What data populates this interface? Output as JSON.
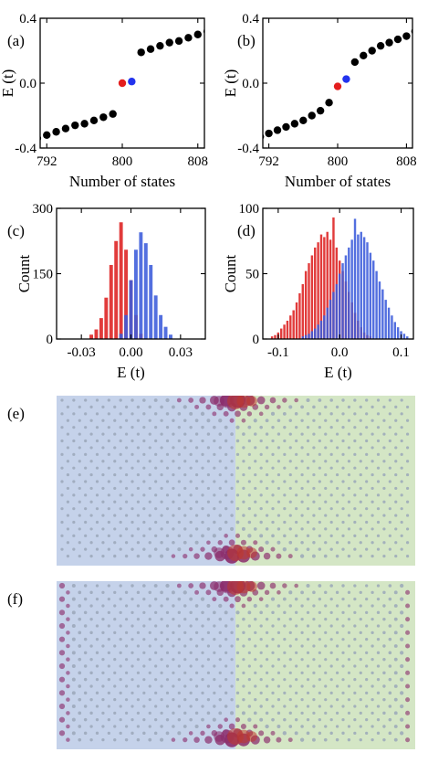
{
  "colors": {
    "black": "#000000",
    "red": "#e41e1e",
    "blue": "#2233ee",
    "hist_red": "#dd2020",
    "hist_blue": "#3b5bdb",
    "region_left": "#c5d2ea",
    "region_right": "#d4e6c5",
    "lattice_gray": "#9aa7b8",
    "state_purple": "#8a2a6a"
  },
  "chart_data": [
    {
      "id": "a",
      "panel_label": "(a)",
      "type": "scatter",
      "xlabel": "Number of states",
      "ylabel": "E (t)",
      "xlim": [
        791.3,
        808.7
      ],
      "ylim": [
        -0.4,
        0.4
      ],
      "xticks": [
        792,
        800,
        808
      ],
      "yticks": [
        -0.4,
        0.0,
        0.4
      ],
      "ytick_labels": [
        "-0.4",
        "0.0",
        "0.4"
      ],
      "series": [
        {
          "color": "black",
          "x": [
            791,
            792,
            793,
            794,
            795,
            796,
            797,
            798,
            799,
            802,
            803,
            804,
            805,
            806,
            807,
            808,
            809
          ],
          "y": [
            -0.34,
            -0.32,
            -0.3,
            -0.28,
            -0.26,
            -0.25,
            -0.23,
            -0.21,
            -0.19,
            0.19,
            0.21,
            0.23,
            0.25,
            0.26,
            0.28,
            0.3,
            0.32
          ]
        },
        {
          "color": "red",
          "x": [
            800
          ],
          "y": [
            0.0
          ]
        },
        {
          "color": "blue",
          "x": [
            801
          ],
          "y": [
            0.01
          ]
        }
      ]
    },
    {
      "id": "b",
      "panel_label": "(b)",
      "type": "scatter",
      "xlabel": "Number of states",
      "ylabel": "E (t)",
      "xlim": [
        791.3,
        808.7
      ],
      "ylim": [
        -0.4,
        0.4
      ],
      "xticks": [
        792,
        800,
        808
      ],
      "yticks": [
        -0.4,
        0.0,
        0.4
      ],
      "ytick_labels": [
        "-0.4",
        "0.0",
        "0.4"
      ],
      "series": [
        {
          "color": "black",
          "x": [
            791,
            792,
            793,
            794,
            795,
            796,
            797,
            798,
            799,
            802,
            803,
            804,
            805,
            806,
            807,
            808,
            809
          ],
          "y": [
            -0.33,
            -0.31,
            -0.29,
            -0.27,
            -0.25,
            -0.23,
            -0.2,
            -0.17,
            -0.12,
            0.13,
            0.17,
            0.2,
            0.23,
            0.25,
            0.27,
            0.29,
            0.32
          ]
        },
        {
          "color": "red",
          "x": [
            800
          ],
          "y": [
            -0.02
          ]
        },
        {
          "color": "blue",
          "x": [
            801
          ],
          "y": [
            0.025
          ]
        }
      ]
    },
    {
      "id": "c",
      "panel_label": "(c)",
      "type": "bar",
      "xlabel": "E (t)",
      "ylabel": "Count",
      "xlim": [
        -0.045,
        0.045
      ],
      "ylim": [
        0,
        300
      ],
      "xticks": [
        -0.03,
        0.0,
        0.03
      ],
      "xtick_labels": [
        "-0.03",
        "0.00",
        "0.03"
      ],
      "yticks": [
        0,
        150,
        300
      ],
      "ytick_labels": [
        "0",
        "150",
        "300"
      ],
      "bin_width": 0.003,
      "series": [
        {
          "color": "hist_red",
          "x": [
            -0.024,
            -0.021,
            -0.018,
            -0.015,
            -0.012,
            -0.009,
            -0.006,
            -0.003,
            0.0,
            0.003,
            0.006
          ],
          "values": [
            10,
            22,
            48,
            95,
            170,
            225,
            268,
            205,
            135,
            55,
            12
          ]
        },
        {
          "color": "hist_blue",
          "x": [
            -0.006,
            -0.003,
            0.0,
            0.003,
            0.006,
            0.009,
            0.012,
            0.015,
            0.018,
            0.021,
            0.024
          ],
          "values": [
            12,
            55,
            135,
            205,
            245,
            220,
            170,
            100,
            55,
            28,
            10
          ]
        }
      ]
    },
    {
      "id": "d",
      "panel_label": "(d)",
      "type": "bar",
      "xlabel": "E (t)",
      "ylabel": "Count",
      "xlim": [
        -0.125,
        0.12
      ],
      "ylim": [
        0,
        100
      ],
      "xticks": [
        -0.1,
        0.0,
        0.1
      ],
      "xtick_labels": [
        "-0.1",
        "0.0",
        "0.1"
      ],
      "yticks": [
        0,
        50,
        100
      ],
      "ytick_labels": [
        "0",
        "50",
        "100"
      ],
      "bin_width": 0.005,
      "series": [
        {
          "color": "hist_red",
          "x": [
            -0.11,
            -0.105,
            -0.1,
            -0.095,
            -0.09,
            -0.085,
            -0.08,
            -0.075,
            -0.07,
            -0.065,
            -0.06,
            -0.055,
            -0.05,
            -0.045,
            -0.04,
            -0.035,
            -0.03,
            -0.025,
            -0.02,
            -0.015,
            -0.01,
            -0.005,
            0.0,
            0.005,
            0.01,
            0.015,
            0.02,
            0.025,
            0.03,
            0.035,
            0.04,
            0.045,
            0.05
          ],
          "values": [
            2,
            3,
            5,
            8,
            11,
            14,
            18,
            22,
            28,
            35,
            42,
            52,
            58,
            64,
            70,
            74,
            80,
            78,
            82,
            76,
            93,
            70,
            60,
            52,
            44,
            36,
            28,
            20,
            14,
            9,
            5,
            3,
            2
          ]
        },
        {
          "color": "hist_blue",
          "x": [
            -0.06,
            -0.055,
            -0.05,
            -0.045,
            -0.04,
            -0.035,
            -0.03,
            -0.025,
            -0.02,
            -0.015,
            -0.01,
            -0.005,
            0.0,
            0.005,
            0.01,
            0.015,
            0.02,
            0.025,
            0.03,
            0.035,
            0.04,
            0.045,
            0.05,
            0.055,
            0.06,
            0.065,
            0.07,
            0.075,
            0.08,
            0.085,
            0.09,
            0.095,
            0.1,
            0.105,
            0.11
          ],
          "values": [
            2,
            3,
            4,
            6,
            8,
            11,
            14,
            18,
            24,
            30,
            36,
            42,
            50,
            58,
            64,
            70,
            76,
            92,
            80,
            82,
            78,
            74,
            66,
            60,
            52,
            44,
            38,
            30,
            24,
            18,
            13,
            9,
            6,
            4,
            2
          ]
        }
      ]
    }
  ],
  "panels_lattice": [
    {
      "id": "e",
      "panel_label": "(e)"
    },
    {
      "id": "f",
      "panel_label": "(f)"
    }
  ]
}
